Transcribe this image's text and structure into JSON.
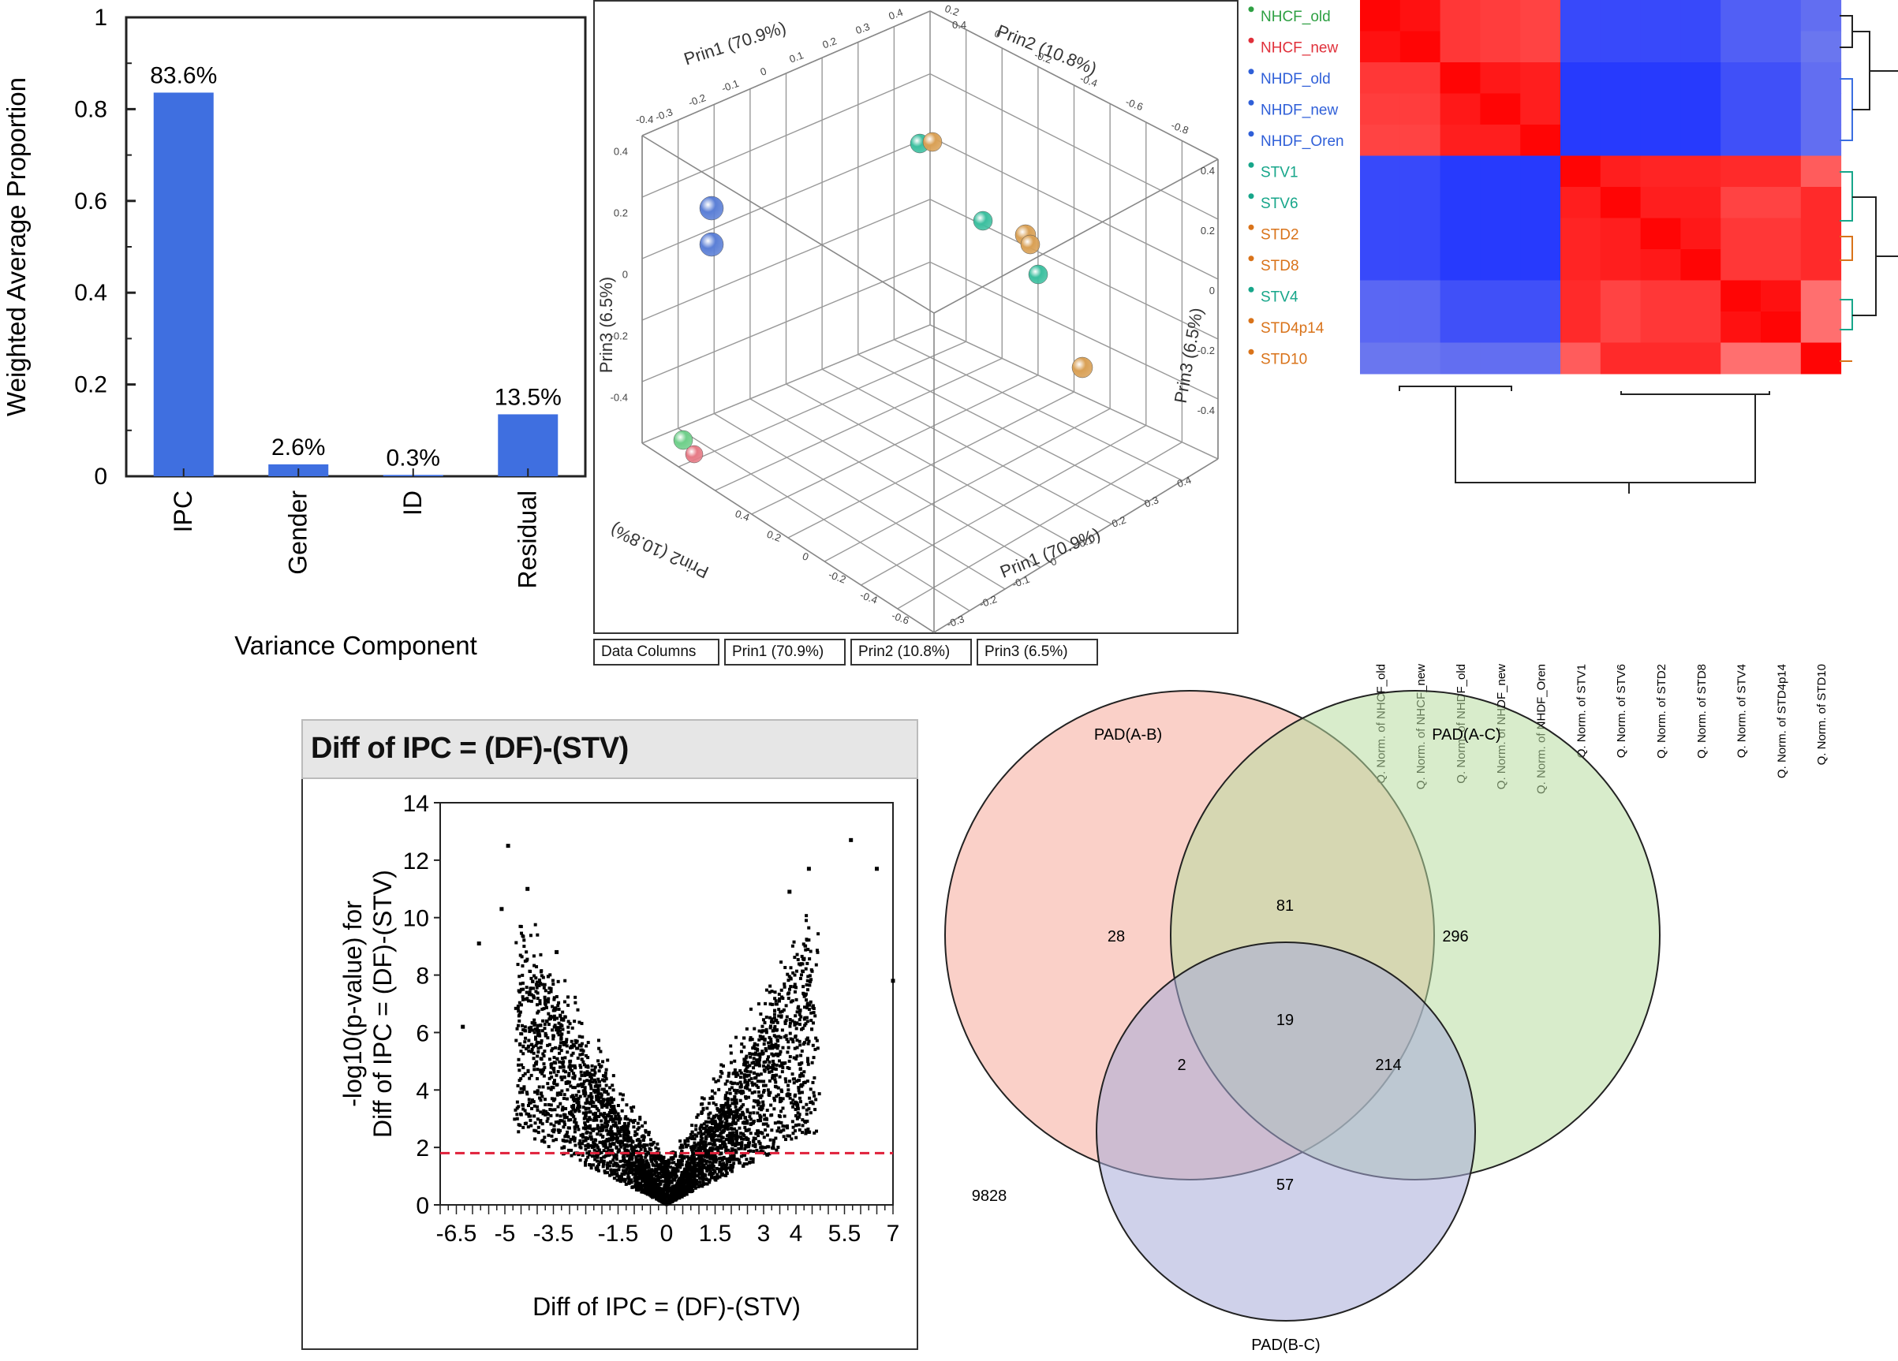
{
  "chart_data": [
    {
      "type": "bar",
      "xlabel": "Variance Component",
      "ylabel": "Weighted Average Proportion",
      "categories": [
        "IPC",
        "Gender",
        "ID",
        "Residual"
      ],
      "values": [
        0.836,
        0.026,
        0.003,
        0.135
      ],
      "data_labels": [
        "83.6%",
        "2.6%",
        "0.3%",
        "13.5%"
      ],
      "ylim": [
        0,
        1
      ],
      "yticks": [
        "0",
        "0.2",
        "0.4",
        "0.6",
        "0.8",
        "1"
      ],
      "bar_color": "#3f6fe0"
    },
    {
      "type": "scatter",
      "axes": [
        "Prin1 (70.9%)",
        "Prin2 (10.8%)",
        "Prin3 (6.5%)"
      ],
      "tabs": [
        "Data Columns",
        "Prin1 (70.9%)",
        "Prin2 (10.8%)",
        "Prin3 (6.5%)"
      ],
      "prin1_ticks": [
        "-0.3",
        "-0.2",
        "-0.1",
        "0",
        "0.1",
        "0.2",
        "0.3",
        "0.4"
      ],
      "prin2_ticks": [
        "0.2",
        "0",
        "-0.2",
        "-0.4",
        "-0.6",
        "-0.8"
      ],
      "prin3_ticks": [
        "0.4",
        "0.2",
        "0",
        "-0.2",
        "-0.4"
      ],
      "prin1_ticks_bottom": [
        "-0.3",
        "-0.2",
        "-0.1",
        "0",
        "0.1",
        "0.2",
        "0.3",
        "0.4"
      ],
      "prin2_ticks_left": [
        "0.4",
        "0.2",
        "0",
        "-0.2",
        "-0.4",
        "-0.6"
      ],
      "prin3_ticks_right": [
        "0.4",
        "0.2",
        "0",
        "-0.2",
        "-0.4"
      ],
      "extra_ticks_top_left": [
        "-0.4",
        "0.4"
      ],
      "colors": {
        "green": "#6fcf8a",
        "teal": "#3cbf9f",
        "orange": "#d9a055",
        "blue": "#5b7fd6",
        "red": "#e67a85"
      }
    },
    {
      "type": "heatmap",
      "row_labels": [
        "NHCF_old",
        "NHCF_new",
        "NHDF_old",
        "NHDF_new",
        "NHDF_Oren",
        "STV1",
        "STV6",
        "STD2",
        "STD8",
        "STV4",
        "STD4p14",
        "STD10"
      ],
      "row_label_colors": [
        "#2ea043",
        "#e0303a",
        "#2f5fd8",
        "#2f5fd8",
        "#2f5fd8",
        "#17a68a",
        "#17a68a",
        "#d9731a",
        "#d9731a",
        "#17a68a",
        "#d9731a",
        "#d9731a"
      ],
      "col_labels": [
        "Q. Norm. of NHCF_old",
        "Q. Norm. of NHCF_new",
        "Q. Norm. of NHDF_old",
        "Q. Norm. of NHDF_new",
        "Q. Norm. of NHDF_Oren",
        "Q. Norm. of STV1",
        "Q. Norm. of STV6",
        "Q. Norm. of STD2",
        "Q. Norm. of STD8",
        "Q. Norm. of STV4",
        "Q. Norm. of STD4p14",
        "Q. Norm. of STD10"
      ],
      "matrix": [
        [
          1.0,
          0.9,
          0.6,
          0.55,
          0.5,
          -0.85,
          -0.85,
          -0.85,
          -0.85,
          -0.7,
          -0.7,
          -0.6
        ],
        [
          0.9,
          1.0,
          0.6,
          0.55,
          0.5,
          -0.85,
          -0.85,
          -0.85,
          -0.85,
          -0.7,
          -0.7,
          -0.55
        ],
        [
          0.6,
          0.6,
          1.0,
          0.85,
          0.8,
          -0.95,
          -0.95,
          -0.95,
          -0.95,
          -0.8,
          -0.8,
          -0.6
        ],
        [
          0.55,
          0.55,
          0.85,
          1.0,
          0.8,
          -0.95,
          -0.95,
          -0.95,
          -0.95,
          -0.8,
          -0.8,
          -0.6
        ],
        [
          0.5,
          0.5,
          0.8,
          0.8,
          1.0,
          -0.95,
          -0.95,
          -0.95,
          -0.95,
          -0.8,
          -0.8,
          -0.6
        ],
        [
          -0.85,
          -0.85,
          -0.95,
          -0.95,
          -0.95,
          1.0,
          0.8,
          0.75,
          0.75,
          0.7,
          0.7,
          0.3
        ],
        [
          -0.85,
          -0.85,
          -0.95,
          -0.95,
          -0.95,
          0.8,
          1.0,
          0.8,
          0.8,
          0.5,
          0.5,
          0.7
        ],
        [
          -0.85,
          -0.85,
          -0.95,
          -0.95,
          -0.95,
          0.75,
          0.8,
          1.0,
          0.85,
          0.6,
          0.6,
          0.7
        ],
        [
          -0.85,
          -0.85,
          -0.95,
          -0.95,
          -0.95,
          0.75,
          0.8,
          0.85,
          1.0,
          0.6,
          0.6,
          0.7
        ],
        [
          -0.65,
          -0.65,
          -0.8,
          -0.8,
          -0.8,
          0.7,
          0.5,
          0.6,
          0.6,
          1.0,
          0.9,
          0.15
        ],
        [
          -0.65,
          -0.65,
          -0.8,
          -0.8,
          -0.8,
          0.7,
          0.5,
          0.6,
          0.6,
          0.9,
          1.0,
          0.15
        ],
        [
          -0.55,
          -0.55,
          -0.6,
          -0.6,
          -0.6,
          0.3,
          0.7,
          0.7,
          0.7,
          0.15,
          0.15,
          1.0
        ]
      ]
    },
    {
      "type": "scatter",
      "title": "Diff of IPC = (DF)-(STV)",
      "xlabel": "Diff of IPC = (DF)-(STV)",
      "ylabel": "-log10(p-value) for Diff of IPC = (DF)-(STV)",
      "ylabel_line1": "-log10(p-value) for",
      "ylabel_line2": "Diff of IPC = (DF)-(STV)",
      "xticks": [
        "-6.5",
        "-5",
        "-3.5",
        "-1.5",
        "0",
        "1.5",
        "3",
        "4",
        "5.5",
        "7"
      ],
      "yticks": [
        "0",
        "2",
        "4",
        "6",
        "8",
        "10",
        "12",
        "14"
      ],
      "xlim": [
        -7,
        7
      ],
      "ylim": [
        0,
        14
      ],
      "threshold": 1.8,
      "threshold_color": "#e0203a",
      "sample_points": [
        [
          -6.3,
          6.2
        ],
        [
          -5.8,
          9.1
        ],
        [
          -5.1,
          10.3
        ],
        [
          -4.9,
          12.5
        ],
        [
          -4.3,
          11.0
        ],
        [
          5.7,
          12.7
        ],
        [
          6.5,
          11.7
        ],
        [
          7.0,
          7.8
        ],
        [
          4.4,
          11.7
        ],
        [
          -3.4,
          8.8
        ],
        [
          3.8,
          10.9
        ]
      ]
    },
    {
      "type": "venn",
      "sets": [
        "PAD(A-B)",
        "PAD(A-C)",
        "PAD(B-C)"
      ],
      "regions": {
        "A_only": 28,
        "B_only": 296,
        "C_only": 57,
        "AB": 81,
        "AC": 2,
        "BC": 214,
        "ABC": 19
      },
      "outside": 9828,
      "colors": {
        "A": "#f5a99a",
        "B": "#b8dca0",
        "C": "#a8acd9"
      }
    }
  ]
}
